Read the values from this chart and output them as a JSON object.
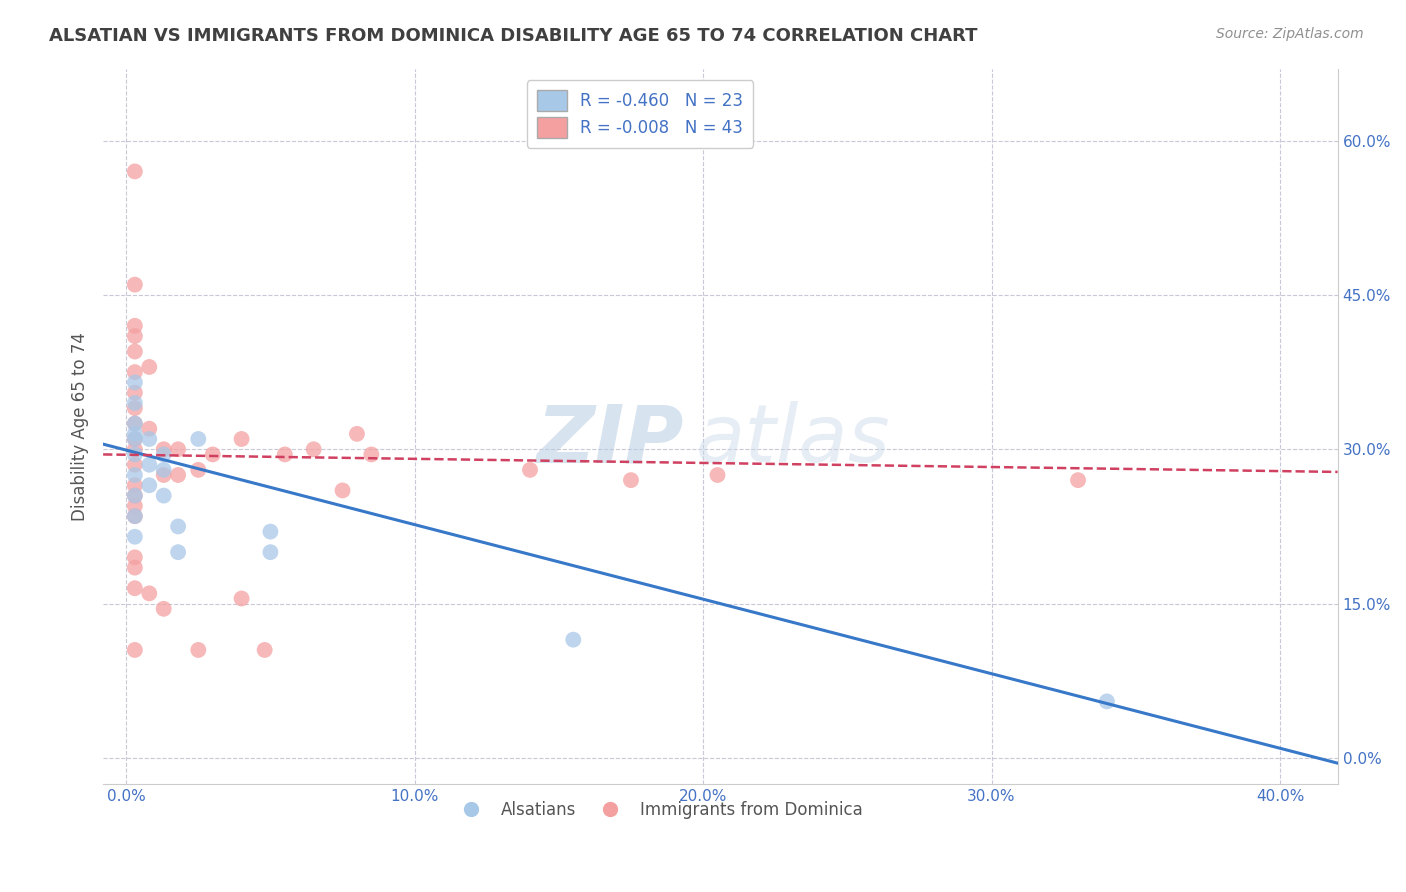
{
  "title": "ALSATIAN VS IMMIGRANTS FROM DOMINICA DISABILITY AGE 65 TO 74 CORRELATION CHART",
  "source": "Source: ZipAtlas.com",
  "ylabel": "Disability Age 65 to 74",
  "x_ticks": [
    0.0,
    0.1,
    0.2,
    0.3,
    0.4
  ],
  "x_tick_labels": [
    "0.0%",
    "10.0%",
    "20.0%",
    "30.0%",
    "40.0%"
  ],
  "y_ticks": [
    0.0,
    0.15,
    0.3,
    0.45,
    0.6
  ],
  "y_tick_labels": [
    "0.0%",
    "15.0%",
    "30.0%",
    "45.0%",
    "60.0%"
  ],
  "xlim": [
    -0.008,
    0.42
  ],
  "ylim": [
    -0.025,
    0.67
  ],
  "blue_color": "#a8c8e8",
  "pink_color": "#f4a0a0",
  "blue_line_color": "#3878c8",
  "pink_line_color": "#d04060",
  "R_blue": -0.46,
  "N_blue": 23,
  "R_pink": -0.008,
  "N_pink": 43,
  "legend_label_blue": "Alsatians",
  "legend_label_pink": "Immigrants from Dominica",
  "watermark_zip": "ZIP",
  "watermark_atlas": "atlas",
  "blue_x": [
    0.003,
    0.003,
    0.003,
    0.003,
    0.003,
    0.003,
    0.003,
    0.003,
    0.003,
    0.003,
    0.008,
    0.008,
    0.008,
    0.013,
    0.013,
    0.013,
    0.018,
    0.018,
    0.025,
    0.05,
    0.05,
    0.155,
    0.34
  ],
  "blue_y": [
    0.215,
    0.235,
    0.255,
    0.275,
    0.295,
    0.31,
    0.315,
    0.325,
    0.345,
    0.365,
    0.265,
    0.285,
    0.31,
    0.255,
    0.28,
    0.295,
    0.2,
    0.225,
    0.31,
    0.2,
    0.22,
    0.115,
    0.055
  ],
  "pink_x": [
    0.003,
    0.003,
    0.003,
    0.003,
    0.003,
    0.003,
    0.003,
    0.003,
    0.003,
    0.003,
    0.003,
    0.003,
    0.003,
    0.003,
    0.003,
    0.003,
    0.003,
    0.003,
    0.003,
    0.003,
    0.008,
    0.008,
    0.008,
    0.013,
    0.013,
    0.013,
    0.018,
    0.018,
    0.025,
    0.025,
    0.03,
    0.04,
    0.04,
    0.048,
    0.055,
    0.065,
    0.075,
    0.08,
    0.085,
    0.14,
    0.175,
    0.205,
    0.33
  ],
  "pink_y": [
    0.57,
    0.46,
    0.42,
    0.41,
    0.395,
    0.375,
    0.355,
    0.34,
    0.325,
    0.31,
    0.3,
    0.285,
    0.265,
    0.255,
    0.245,
    0.235,
    0.195,
    0.185,
    0.165,
    0.105,
    0.38,
    0.32,
    0.16,
    0.3,
    0.275,
    0.145,
    0.3,
    0.275,
    0.28,
    0.105,
    0.295,
    0.31,
    0.155,
    0.105,
    0.295,
    0.3,
    0.26,
    0.315,
    0.295,
    0.28,
    0.27,
    0.275,
    0.27
  ],
  "grid_color": "#c8c8d8",
  "bg_color": "#ffffff",
  "title_color": "#404040",
  "axis_label_color": "#555555",
  "tick_color": "#4472c4",
  "source_color": "#909090",
  "blue_trend_start_y": 0.305,
  "blue_trend_end_y": -0.005,
  "pink_trend_start_y": 0.295,
  "pink_trend_end_y": 0.278
}
